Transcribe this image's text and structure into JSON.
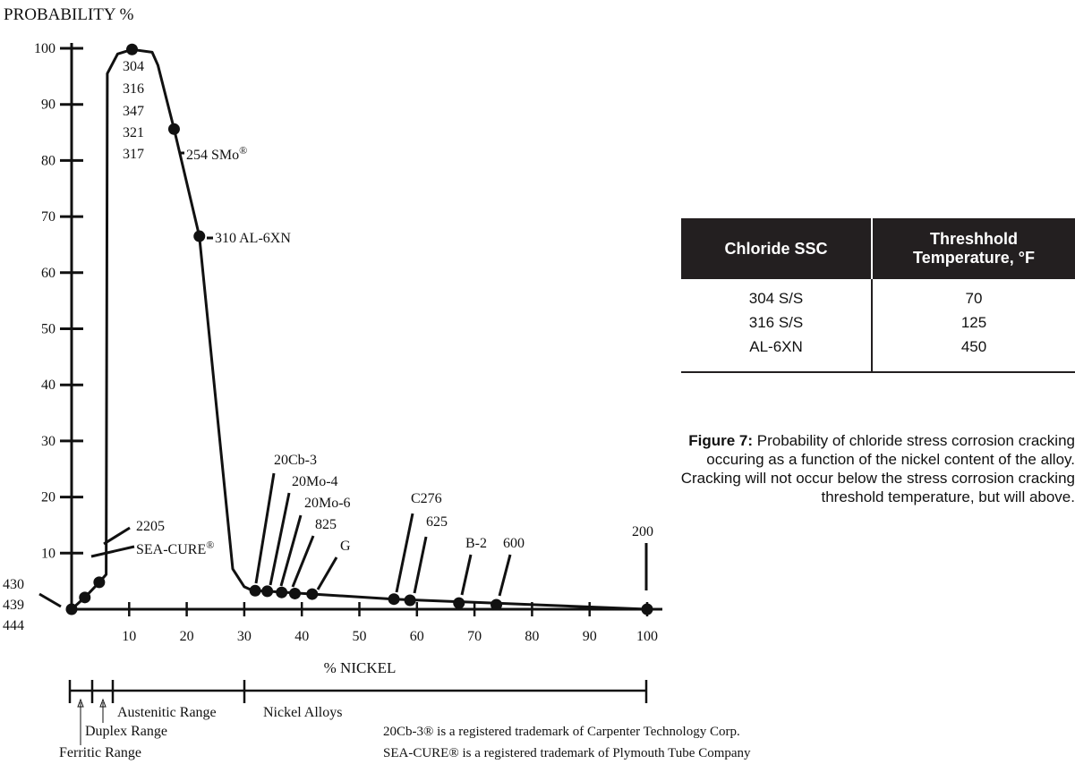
{
  "chart_data": {
    "type": "line",
    "ylabel": "PROBABILITY %",
    "xlabel": "% NICKEL",
    "xlim": [
      0,
      100
    ],
    "ylim": [
      0,
      100
    ],
    "x_ticks": [
      "10",
      "20",
      "30",
      "40",
      "50",
      "60",
      "70",
      "80",
      "90",
      "100"
    ],
    "y_ticks": [
      "10",
      "20",
      "30",
      "40",
      "50",
      "60",
      "70",
      "80",
      "90",
      "100"
    ],
    "curve": [
      {
        "x": 0.0,
        "y": 0.0
      },
      {
        "x": 2.3,
        "y": 2.1
      },
      {
        "x": 4.8,
        "y": 4.8
      },
      {
        "x": 6.0,
        "y": 6.2
      },
      {
        "x": 6.2,
        "y": 95.5
      },
      {
        "x": 8.0,
        "y": 99.0
      },
      {
        "x": 10.5,
        "y": 99.8
      },
      {
        "x": 14.0,
        "y": 99.3
      },
      {
        "x": 15.0,
        "y": 97.0
      },
      {
        "x": 17.8,
        "y": 85.6
      },
      {
        "x": 22.2,
        "y": 66.5
      },
      {
        "x": 28.0,
        "y": 7.2
      },
      {
        "x": 30.0,
        "y": 4.0
      },
      {
        "x": 31.5,
        "y": 3.3
      },
      {
        "x": 34.0,
        "y": 3.2
      },
      {
        "x": 56.0,
        "y": 1.8
      },
      {
        "x": 100.0,
        "y": 0.0
      }
    ],
    "points": [
      {
        "x": 0.0,
        "y": 0.0
      },
      {
        "x": 2.3,
        "y": 2.1
      },
      {
        "x": 4.8,
        "y": 4.8
      },
      {
        "x": 10.5,
        "y": 99.8
      },
      {
        "x": 17.8,
        "y": 85.6
      },
      {
        "x": 22.2,
        "y": 66.5
      },
      {
        "x": 31.9,
        "y": 3.3
      },
      {
        "x": 34.0,
        "y": 3.2
      },
      {
        "x": 36.5,
        "y": 3.0
      },
      {
        "x": 38.8,
        "y": 2.8
      },
      {
        "x": 41.8,
        "y": 2.7
      },
      {
        "x": 56.0,
        "y": 1.8
      },
      {
        "x": 58.8,
        "y": 1.6
      },
      {
        "x": 67.3,
        "y": 1.1
      },
      {
        "x": 73.8,
        "y": 0.8
      },
      {
        "x": 100.0,
        "y": 0.0
      }
    ],
    "point_labels": [
      "430",
      "439",
      "444",
      "2205",
      "SEA-CURE",
      "304",
      "316",
      "347",
      "321",
      "317",
      "254 SMo",
      "310 AL-6XN",
      "20Cb-3",
      "20Mo-4",
      "20Mo-6",
      "825",
      "G",
      "C276",
      "625",
      "B-2",
      "600",
      "200"
    ],
    "ranges": [
      {
        "label": "Ferritic Range",
        "from": 0,
        "to": 2.5
      },
      {
        "label": "Duplex Range",
        "from": 2.5,
        "to": 5
      },
      {
        "label": "Austenitic Range",
        "from": 6,
        "to": 30
      },
      {
        "label": "Nickel Alloys",
        "from": 30,
        "to": 100
      }
    ]
  },
  "trademark_notes": [
    "20Cb-3® is a registered trademark of Carpenter Technology Corp.",
    "SEA-CURE® is a registered trademark of Plymouth Tube Company"
  ],
  "table": {
    "headers": [
      "Chloride SSC",
      "Threshhold Temperature, °F"
    ],
    "rows": [
      [
        "304 S/S",
        "70"
      ],
      [
        "316 S/S",
        "125"
      ],
      [
        "AL-6XN",
        "450"
      ]
    ]
  },
  "caption": {
    "label": "Figure 7:",
    "text": " Probability of chloride stress corrosion cracking occuring as a function of the nickel content of the alloy. Cracking will not occur below the stress corrosion cracking threshold temperature, but will above."
  }
}
